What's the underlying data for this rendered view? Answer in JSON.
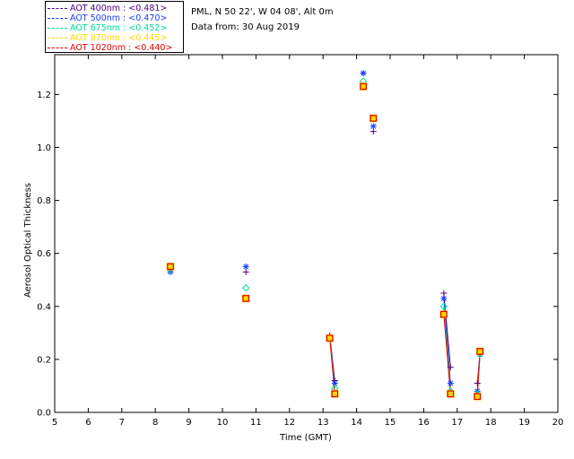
{
  "info": {
    "station": "PML, N 50 22', W 04 08', Alt 0m",
    "date": "Data from: 30 Aug 2019"
  },
  "legend": [
    {
      "label": "AOT  400nm : <0.481>",
      "color": "#4b0082"
    },
    {
      "label": "AOT  500nm : <0.470>",
      "color": "#1a3cff"
    },
    {
      "label": "AOT  675nm : <0.452>",
      "color": "#00e090"
    },
    {
      "label": "AOT  870nm : <0.445>",
      "color": "#ffd700"
    },
    {
      "label": "AOT 1020nm : <0.440>",
      "color": "#e00000"
    }
  ],
  "chart_data": {
    "type": "scatter",
    "xlabel": "Time (GMT)",
    "ylabel": "Aerosol Optical Thickness",
    "xlim": [
      5,
      20
    ],
    "ylim": [
      0.0,
      1.35
    ],
    "xticks": [
      5,
      6,
      7,
      8,
      9,
      10,
      11,
      12,
      13,
      14,
      15,
      16,
      17,
      18,
      19,
      20
    ],
    "yticks": [
      "0.0",
      "0.2",
      "0.4",
      "0.6",
      "0.8",
      "1.0",
      "1.2"
    ],
    "x": [
      8.45,
      10.7,
      13.2,
      13.35,
      14.2,
      14.5,
      16.6,
      16.8,
      17.6,
      17.68
    ],
    "connected_segments": [
      [
        2,
        3
      ],
      [
        6,
        7
      ],
      [
        8,
        9
      ]
    ],
    "series": [
      {
        "name": "AOT 400nm",
        "marker": "plus",
        "color": "#4b0082",
        "values": [
          0.53,
          0.53,
          0.29,
          0.12,
          1.28,
          1.06,
          0.45,
          0.17,
          0.11,
          0.23
        ]
      },
      {
        "name": "AOT 500nm",
        "marker": "asterisk",
        "color": "#1a3cff",
        "values": [
          0.53,
          0.55,
          0.28,
          0.11,
          1.28,
          1.08,
          0.43,
          0.11,
          0.08,
          0.22
        ]
      },
      {
        "name": "AOT 675nm",
        "marker": "diamond",
        "color": "#00e090",
        "values": [
          0.54,
          0.47,
          0.28,
          0.09,
          1.25,
          1.11,
          0.4,
          0.08,
          0.07,
          0.22
        ]
      },
      {
        "name": "AOT 870nm",
        "marker": "square",
        "color": "#ffd700",
        "values": [
          0.55,
          0.43,
          0.28,
          0.07,
          1.23,
          1.11,
          0.37,
          0.07,
          0.06,
          0.23
        ]
      },
      {
        "name": "AOT 1020nm",
        "marker": "square",
        "color": "#e00000",
        "values": [
          0.55,
          0.43,
          0.28,
          0.07,
          1.23,
          1.11,
          0.37,
          0.07,
          0.06,
          0.23
        ]
      }
    ],
    "grid": false,
    "legend_position": "top-left"
  }
}
